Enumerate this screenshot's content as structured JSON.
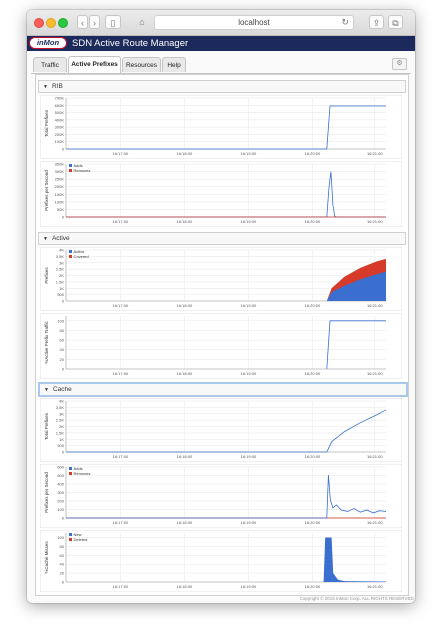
{
  "browser": {
    "url": "localhost",
    "back_glyph": "‹",
    "forward_glyph": "›",
    "sidebar_glyph": "▯",
    "home_glyph": "⌂",
    "reload_glyph": "↻",
    "share_glyph": "⇪",
    "tabs_glyph": "⧉"
  },
  "app": {
    "logo": "inMon",
    "title": "SDN Active Route Manager",
    "copyright": "Copyright © 2015 InMon Corp. ALL RIGHTS RESERVED",
    "settings_glyph": "⚙"
  },
  "tabs": [
    {
      "label": "Traffic"
    },
    {
      "label": "Active Prefixes"
    },
    {
      "label": "Resources"
    },
    {
      "label": "Help"
    }
  ],
  "sections": [
    {
      "title": "RIB"
    },
    {
      "title": "Active"
    },
    {
      "title": "Cache"
    }
  ],
  "colors": {
    "blue": "#3a6fd0",
    "red": "#d63a2a",
    "accent": "#1b2a5a"
  },
  "chart_data": [
    {
      "id": "rib-total",
      "type": "line",
      "ylabel": "Total Prefixes",
      "yticks": [
        "0",
        "100K",
        "200K",
        "300K",
        "400K",
        "500K",
        "600K",
        "700K"
      ],
      "ymax": 700000,
      "xticks": [
        "16:17:00",
        "16:18:00",
        "16:19:00",
        "16:20:00",
        "16:21:00"
      ],
      "series": [
        {
          "color": "#3a6fd0",
          "points": [
            [
              0,
              0
            ],
            [
              0.815,
              0
            ],
            [
              0.825,
              590000
            ],
            [
              0.84,
              590000
            ],
            [
              1,
              590000
            ]
          ]
        }
      ]
    },
    {
      "id": "rib-rate",
      "type": "line",
      "ylabel": "Prefixes per Second",
      "yticks": [
        "0",
        "50K",
        "100K",
        "150K",
        "200K",
        "250K",
        "300K",
        "350K"
      ],
      "ymax": 350000,
      "xticks": [
        "16:17:00",
        "16:18:00",
        "16:19:00",
        "16:20:00",
        "16:21:00"
      ],
      "legend": [
        {
          "name": "Adds",
          "color": "#3a6fd0"
        },
        {
          "name": "Removes",
          "color": "#d63a2a"
        }
      ],
      "series": [
        {
          "color": "#3a6fd0",
          "points": [
            [
              0,
              0
            ],
            [
              0.815,
              0
            ],
            [
              0.822,
              200000
            ],
            [
              0.828,
              300000
            ],
            [
              0.834,
              80000
            ],
            [
              0.84,
              5000
            ],
            [
              0.845,
              0
            ],
            [
              1,
              0
            ]
          ]
        },
        {
          "color": "#d63a2a",
          "points": [
            [
              0,
              0
            ],
            [
              1,
              0
            ]
          ]
        }
      ]
    },
    {
      "id": "active-prefixes",
      "type": "area",
      "ylabel": "Prefixes",
      "yticks": [
        "0",
        "500",
        "1K",
        "1.5K",
        "2K",
        "2.5K",
        "3K",
        "3.5K",
        "4K"
      ],
      "ymax": 4000,
      "xticks": [
        "16:17:00",
        "16:18:00",
        "16:19:00",
        "16:20:00",
        "16:21:00"
      ],
      "legend": [
        {
          "name": "Active",
          "color": "#3a6fd0"
        },
        {
          "name": "Covered",
          "color": "#d63a2a"
        }
      ],
      "series": [
        {
          "name": "Covered",
          "color": "#d63a2a",
          "points": [
            [
              0.815,
              0
            ],
            [
              0.83,
              1000
            ],
            [
              0.87,
              1900
            ],
            [
              0.92,
              2600
            ],
            [
              0.97,
              3100
            ],
            [
              1,
              3300
            ]
          ]
        },
        {
          "name": "Active",
          "color": "#3a6fd0",
          "points": [
            [
              0.815,
              0
            ],
            [
              0.83,
              700
            ],
            [
              0.87,
              1200
            ],
            [
              0.92,
              1700
            ],
            [
              0.97,
              2100
            ],
            [
              1,
              2300
            ]
          ]
        }
      ]
    },
    {
      "id": "active-traffic",
      "type": "line",
      "ylabel": "%Active Prefix Traffic",
      "yticks": [
        "0",
        "20",
        "40",
        "60",
        "80",
        "100"
      ],
      "ymax": 110,
      "xticks": [
        "16:17:00",
        "16:18:00",
        "16:19:00",
        "16:20:00",
        "16:21:00"
      ],
      "series": [
        {
          "color": "#3a6fd0",
          "points": [
            [
              0.815,
              0
            ],
            [
              0.825,
              100
            ],
            [
              1,
              100
            ]
          ]
        }
      ]
    },
    {
      "id": "cache-total",
      "type": "line",
      "ylabel": "Total Prefixes",
      "yticks": [
        "0",
        "500",
        "1K",
        "1.5K",
        "2K",
        "2.5K",
        "3K",
        "3.5K",
        "4K"
      ],
      "ymax": 4000,
      "xticks": [
        "16:17:00",
        "16:18:00",
        "16:19:00",
        "16:20:00",
        "16:21:00"
      ],
      "series": [
        {
          "color": "#3a6fd0",
          "points": [
            [
              0,
              0
            ],
            [
              0.815,
              0
            ],
            [
              0.83,
              800
            ],
            [
              0.87,
              1600
            ],
            [
              0.92,
              2300
            ],
            [
              0.97,
              2900
            ],
            [
              1,
              3300
            ]
          ]
        }
      ]
    },
    {
      "id": "cache-rate",
      "type": "line",
      "ylabel": "Prefixes per Second",
      "yticks": [
        "0",
        "100",
        "200",
        "300",
        "400",
        "500",
        "600"
      ],
      "ymax": 700,
      "xticks": [
        "16:17:00",
        "16:18:00",
        "16:19:00",
        "16:20:00",
        "16:21:00"
      ],
      "legend": [
        {
          "name": "Adds",
          "color": "#3a6fd0"
        },
        {
          "name": "Removes",
          "color": "#d63a2a"
        }
      ],
      "series": [
        {
          "color": "#d63a2a",
          "points": [
            [
              0,
              0
            ],
            [
              1,
              0
            ]
          ]
        },
        {
          "color": "#3a6fd0",
          "points": [
            [
              0,
              0
            ],
            [
              0.815,
              0
            ],
            [
              0.82,
              590
            ],
            [
              0.826,
              250
            ],
            [
              0.834,
              140
            ],
            [
              0.845,
              180
            ],
            [
              0.86,
              110
            ],
            [
              0.88,
              90
            ],
            [
              0.9,
              130
            ],
            [
              0.92,
              80
            ],
            [
              0.94,
              110
            ],
            [
              0.96,
              70
            ],
            [
              0.98,
              100
            ],
            [
              1,
              90
            ]
          ]
        }
      ]
    },
    {
      "id": "cache-misses",
      "type": "area",
      "ylabel": "%Cache Misses",
      "yticks": [
        "0",
        "20",
        "40",
        "60",
        "80",
        "100"
      ],
      "ymax": 110,
      "xticks": [
        "16:17:00",
        "16:18:00",
        "16:19:00",
        "16:20:00",
        "16:21:00"
      ],
      "legend": [
        {
          "name": "New",
          "color": "#3a6fd0"
        },
        {
          "name": "Deleted",
          "color": "#d63a2a"
        }
      ],
      "series": [
        {
          "name": "New",
          "color": "#3a6fd0",
          "points": [
            [
              0.805,
              0
            ],
            [
              0.81,
              100
            ],
            [
              0.83,
              100
            ],
            [
              0.835,
              20
            ],
            [
              0.85,
              5
            ],
            [
              0.87,
              2
            ],
            [
              1,
              1
            ]
          ]
        }
      ]
    }
  ]
}
